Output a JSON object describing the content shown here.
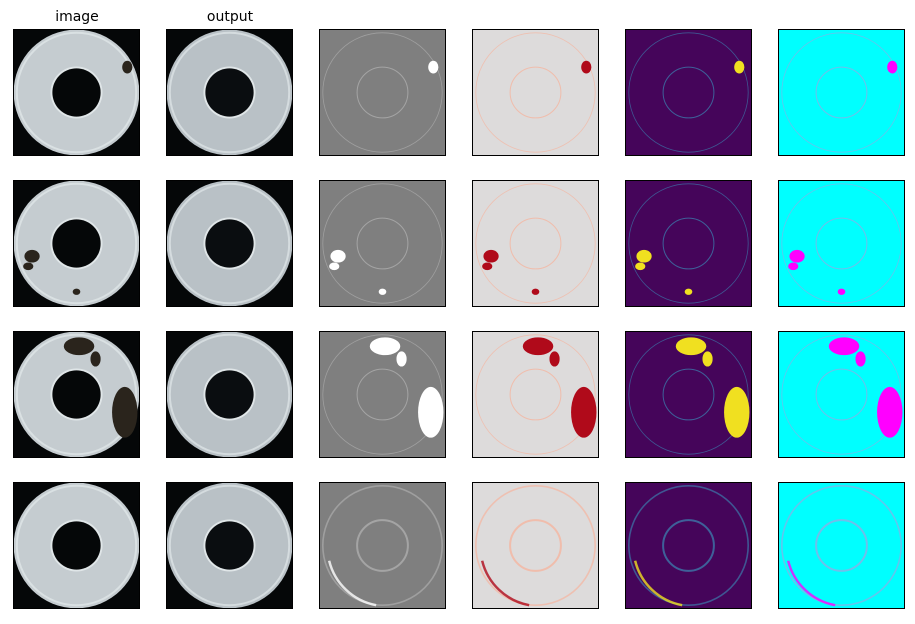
{
  "titles": [
    "image",
    "output"
  ]
}
